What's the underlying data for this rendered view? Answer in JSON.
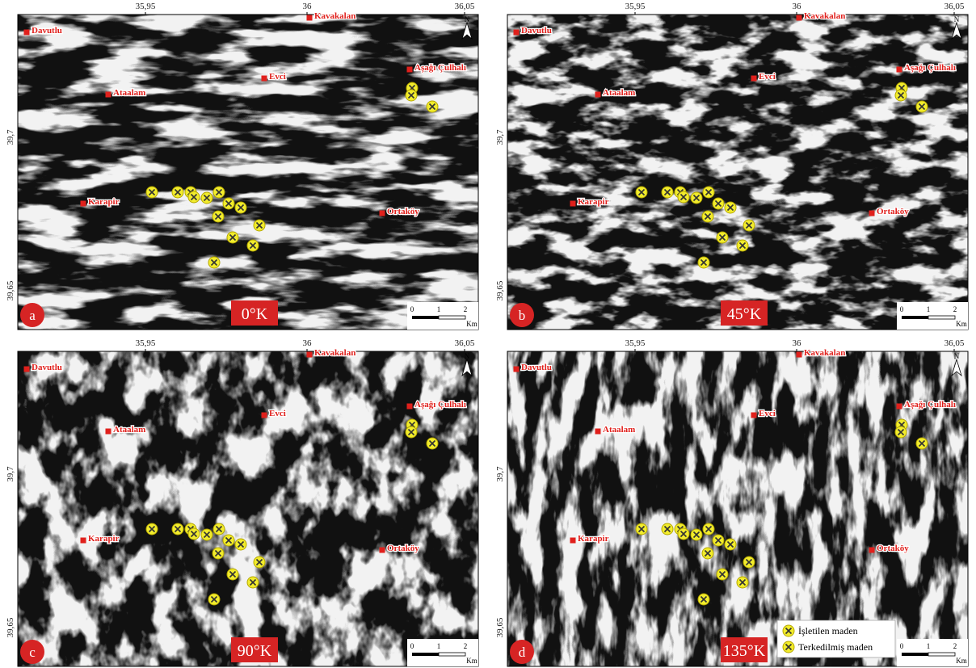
{
  "panels": [
    {
      "letter": "a",
      "angle": "0°K"
    },
    {
      "letter": "b",
      "angle": "45°K"
    },
    {
      "letter": "c",
      "angle": "90°K"
    },
    {
      "letter": "d",
      "angle": "135°K"
    }
  ],
  "top_ticks": [
    "35,95",
    "36",
    "36,05"
  ],
  "left_ticks": [
    "39,7",
    "39,65"
  ],
  "places": [
    "Davutlu",
    "Kavakalan",
    "Aşağı Çulhalı",
    "Evci",
    "Ataalam",
    "Karapir",
    "Ortaköy"
  ],
  "scale": {
    "labels": [
      "0",
      "1",
      "2"
    ],
    "unit": "Km"
  },
  "north": "N",
  "legend": [
    "İşletilen maden",
    "Terkedilmiş maden"
  ]
}
